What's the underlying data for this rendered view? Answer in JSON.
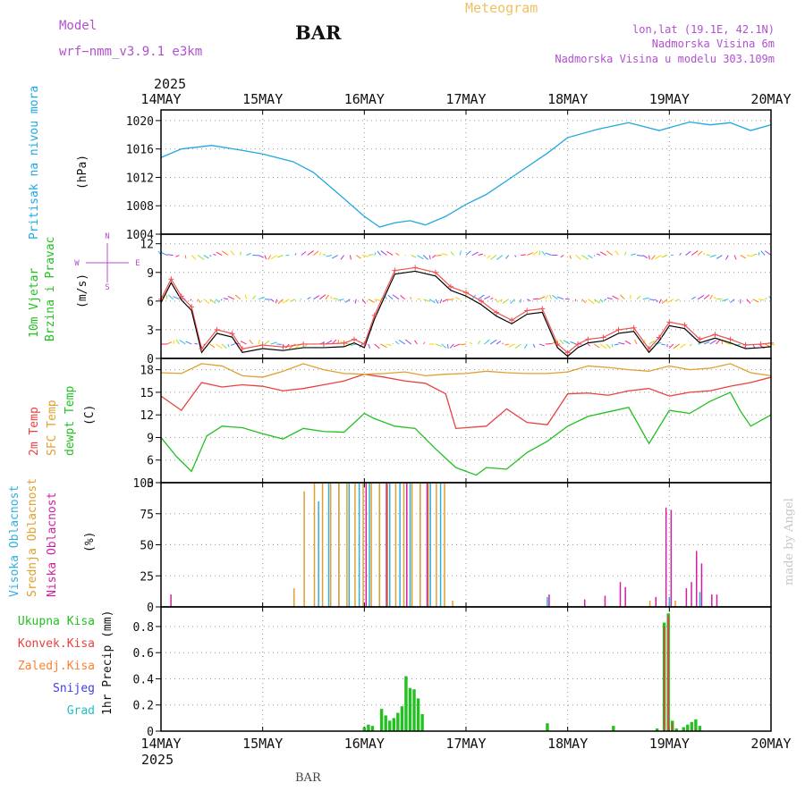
{
  "header": {
    "model_label": "Model",
    "model_name": "wrf−nmm_v3.9.1 e3km",
    "station": "BAR",
    "product": "Meteogram",
    "lonlat": "lon,lat (19.1E, 42.1N)",
    "elevation": "Nadmorska Visina 6m",
    "model_elevation": "Nadmorska Visina u modelu 303.109m",
    "year_top": "2025",
    "year_bottom": "2025",
    "footer_station": "BAR",
    "watermark": "made by Angel"
  },
  "time_axis": {
    "labels": [
      "14MAY",
      "15MAY",
      "16MAY",
      "17MAY",
      "18MAY",
      "19MAY",
      "20MAY"
    ],
    "days": [
      0,
      1,
      2,
      3,
      4,
      5,
      6
    ]
  },
  "colors": {
    "pressure": "#1fa8e0",
    "t2m": "#e84040",
    "sfc": "#e0a030",
    "dewpt": "#22c020",
    "wind_black": "#000000",
    "wind_red": "#f05050",
    "high_cloud": "#30b0e0",
    "mid_cloud": "#e0a030",
    "low_cloud": "#d020a0",
    "total_precip": "#22c020",
    "conv_precip": "#e84040",
    "freezing": "#ff8030",
    "snow": "#4040e0",
    "hail": "#20c0c0",
    "model_text": "#b050d0",
    "meteogram_text": "#f0c060"
  },
  "chart_data": [
    {
      "id": "pressure",
      "type": "line",
      "title": "Pritisak na nivou mora",
      "ylabel": "(hPa)",
      "ylim": [
        1004,
        1021.5
      ],
      "yticks": [
        1004,
        1008,
        1012,
        1016,
        1020
      ],
      "x": [
        0,
        0.2,
        0.5,
        0.8,
        1.0,
        1.3,
        1.5,
        1.8,
        2.0,
        2.15,
        2.3,
        2.45,
        2.6,
        2.8,
        3.0,
        3.2,
        3.5,
        3.8,
        4.0,
        4.3,
        4.6,
        4.9,
        5.2,
        5.4,
        5.6,
        5.8,
        6.0
      ],
      "values": [
        1014.8,
        1016.0,
        1016.5,
        1015.8,
        1015.3,
        1014.2,
        1012.7,
        1009.0,
        1006.5,
        1005.0,
        1005.6,
        1005.9,
        1005.3,
        1006.5,
        1008.2,
        1009.6,
        1012.5,
        1015.4,
        1017.6,
        1018.8,
        1019.7,
        1018.6,
        1019.8,
        1019.4,
        1019.7,
        1018.6,
        1019.4
      ]
    },
    {
      "id": "wind",
      "type": "line",
      "title": "10m Vjetar Brzina i Pravac",
      "ylabel": "(m/s)",
      "ylim": [
        0,
        13
      ],
      "yticks": [
        0,
        3,
        6,
        9,
        12
      ],
      "compass": [
        "N",
        "W",
        "E",
        "S"
      ],
      "barb_levels": [
        1.5,
        6.2,
        10.8
      ],
      "series": [
        {
          "name": "speed",
          "x": [
            0,
            0.1,
            0.2,
            0.3,
            0.4,
            0.55,
            0.7,
            0.8,
            1.0,
            1.2,
            1.4,
            1.6,
            1.8,
            1.9,
            2.0,
            2.1,
            2.3,
            2.5,
            2.7,
            2.85,
            3.0,
            3.15,
            3.3,
            3.45,
            3.6,
            3.75,
            3.9,
            4.0,
            4.1,
            4.2,
            4.35,
            4.5,
            4.65,
            4.8,
            4.9,
            5.0,
            5.15,
            5.3,
            5.45,
            5.6,
            5.75,
            5.9,
            6.0
          ],
          "values": [
            6.2,
            8.3,
            6.5,
            5.4,
            1.0,
            3.0,
            2.6,
            1.0,
            1.4,
            1.2,
            1.5,
            1.5,
            1.6,
            2.0,
            1.5,
            4.5,
            9.2,
            9.5,
            9.0,
            7.5,
            6.9,
            6.0,
            4.8,
            4.0,
            5.0,
            5.2,
            1.5,
            0.6,
            1.5,
            2.0,
            2.2,
            3.0,
            3.2,
            1.0,
            2.2,
            3.8,
            3.5,
            2.0,
            2.5,
            2.0,
            1.4,
            1.5,
            1.6
          ]
        }
      ]
    },
    {
      "id": "temp",
      "type": "line",
      "title": "2m Temp / SFC Temp / dewpt Temp",
      "ylabel": "(C)",
      "ylim": [
        3,
        19.5
      ],
      "yticks": [
        3,
        6,
        9,
        12,
        15,
        18
      ],
      "series": [
        {
          "name": "2m Temp",
          "x": [
            0,
            0.2,
            0.4,
            0.6,
            0.8,
            1.0,
            1.2,
            1.4,
            1.6,
            1.8,
            2.0,
            2.2,
            2.4,
            2.6,
            2.8,
            2.9,
            3.0,
            3.2,
            3.4,
            3.6,
            3.8,
            4.0,
            4.2,
            4.4,
            4.6,
            4.8,
            5.0,
            5.2,
            5.4,
            5.6,
            5.8,
            6.0
          ],
          "values": [
            14.5,
            12.6,
            16.3,
            15.7,
            16.0,
            15.8,
            15.2,
            15.5,
            16.0,
            16.5,
            17.4,
            17.0,
            16.5,
            16.2,
            14.8,
            10.2,
            10.3,
            10.5,
            12.8,
            11.0,
            10.7,
            14.8,
            14.9,
            14.6,
            15.2,
            15.5,
            14.5,
            15.0,
            15.2,
            15.8,
            16.3,
            17.0
          ]
        },
        {
          "name": "SFC Temp",
          "x": [
            0,
            0.2,
            0.4,
            0.6,
            0.8,
            1.0,
            1.2,
            1.4,
            1.6,
            1.8,
            2.0,
            2.2,
            2.4,
            2.6,
            2.8,
            3.0,
            3.2,
            3.4,
            3.6,
            3.8,
            4.0,
            4.2,
            4.4,
            4.6,
            4.8,
            5.0,
            5.2,
            5.4,
            5.6,
            5.8,
            6.0
          ],
          "values": [
            17.6,
            17.5,
            18.8,
            18.5,
            17.2,
            17.0,
            17.8,
            18.8,
            18.0,
            17.5,
            17.4,
            17.5,
            17.7,
            17.2,
            17.4,
            17.5,
            17.8,
            17.6,
            17.5,
            17.5,
            17.7,
            18.5,
            18.3,
            18.0,
            17.8,
            18.5,
            18.0,
            18.2,
            18.8,
            17.6,
            17.2
          ]
        },
        {
          "name": "dewpt Temp",
          "x": [
            0,
            0.15,
            0.3,
            0.45,
            0.6,
            0.8,
            1.0,
            1.2,
            1.4,
            1.6,
            1.8,
            2.0,
            2.1,
            2.3,
            2.5,
            2.7,
            2.9,
            3.1,
            3.2,
            3.4,
            3.6,
            3.8,
            4.0,
            4.2,
            4.4,
            4.6,
            4.8,
            5.0,
            5.2,
            5.4,
            5.6,
            5.7,
            5.8,
            6.0
          ],
          "values": [
            9.0,
            6.5,
            4.5,
            9.2,
            10.5,
            10.3,
            9.5,
            8.8,
            10.2,
            9.8,
            9.7,
            12.2,
            11.5,
            10.5,
            10.2,
            7.5,
            5.0,
            4.0,
            5.0,
            4.8,
            7.0,
            8.5,
            10.5,
            11.8,
            12.4,
            13.0,
            8.2,
            12.6,
            12.2,
            13.8,
            15.0,
            12.5,
            10.5,
            12.0
          ]
        }
      ]
    },
    {
      "id": "cloud",
      "type": "bar",
      "title": "Visoka Oblacnost / Srednja Oblacnost / Niska Oblacnost",
      "ylabel": "(%)",
      "ylim": [
        0,
        100
      ],
      "yticks": [
        0,
        25,
        50,
        75,
        100
      ],
      "series": [
        {
          "name": "Visoka Oblacnost",
          "x": [
            1.45,
            1.55,
            1.65,
            1.75,
            1.85,
            1.95,
            2.05,
            2.15,
            2.25,
            2.35,
            2.45,
            2.55,
            2.65,
            2.75,
            3.8,
            5.0,
            5.3
          ],
          "values": [
            0,
            85,
            100,
            100,
            100,
            100,
            100,
            100,
            100,
            100,
            100,
            100,
            100,
            100,
            8,
            8,
            12
          ]
        },
        {
          "name": "Srednja Oblacnost",
          "x": [
            1.3,
            1.4,
            1.5,
            1.58,
            1.66,
            1.74,
            1.82,
            1.9,
            1.98,
            2.06,
            2.14,
            2.22,
            2.3,
            2.38,
            2.46,
            2.54,
            2.62,
            2.7,
            2.78,
            2.86,
            4.8,
            5.05
          ],
          "values": [
            15,
            93,
            100,
            100,
            100,
            100,
            100,
            100,
            100,
            100,
            100,
            100,
            100,
            100,
            100,
            100,
            100,
            100,
            100,
            5,
            5,
            5
          ]
        },
        {
          "name": "Niska Oblacnost",
          "x": [
            0.08,
            2.0,
            2.2,
            2.4,
            2.6,
            3.8,
            4.15,
            4.35,
            4.5,
            4.55,
            4.85,
            4.95,
            5.0,
            5.15,
            5.2,
            5.25,
            5.3,
            5.4,
            5.45
          ],
          "values": [
            10,
            100,
            100,
            100,
            100,
            10,
            6,
            9,
            20,
            16,
            8,
            80,
            78,
            15,
            20,
            45,
            35,
            10,
            10
          ]
        }
      ]
    },
    {
      "id": "precip",
      "type": "bar",
      "title": "1hr Precip",
      "ylabel": "1hr Precip (mm)",
      "ylim": [
        0,
        0.95
      ],
      "yticks": [
        0,
        0.2,
        0.4,
        0.6,
        0.8
      ],
      "legend": [
        "Ukupna Kisa",
        "Konvek.Kisa",
        "Zaledj.Kisa",
        "Snijeg",
        "Grad"
      ],
      "series": [
        {
          "name": "Ukupna Kisa",
          "x": [
            2.0,
            2.04,
            2.08,
            2.17,
            2.21,
            2.25,
            2.29,
            2.33,
            2.37,
            2.41,
            2.45,
            2.49,
            2.53,
            2.57,
            3.8,
            4.45,
            4.88,
            4.95,
            4.99,
            5.03,
            5.07,
            5.14,
            5.18,
            5.22,
            5.26,
            5.3
          ],
          "values": [
            0.03,
            0.05,
            0.04,
            0.17,
            0.12,
            0.08,
            0.1,
            0.14,
            0.19,
            0.42,
            0.33,
            0.32,
            0.25,
            0.13,
            0.06,
            0.04,
            0.02,
            0.83,
            0.9,
            0.08,
            0.02,
            0.03,
            0.05,
            0.07,
            0.09,
            0.04
          ]
        },
        {
          "name": "Konvek.Kisa",
          "x": [
            4.95,
            4.99,
            5.03,
            5.26
          ],
          "values": [
            0.8,
            0.88,
            0.06,
            0.02
          ]
        }
      ]
    }
  ]
}
